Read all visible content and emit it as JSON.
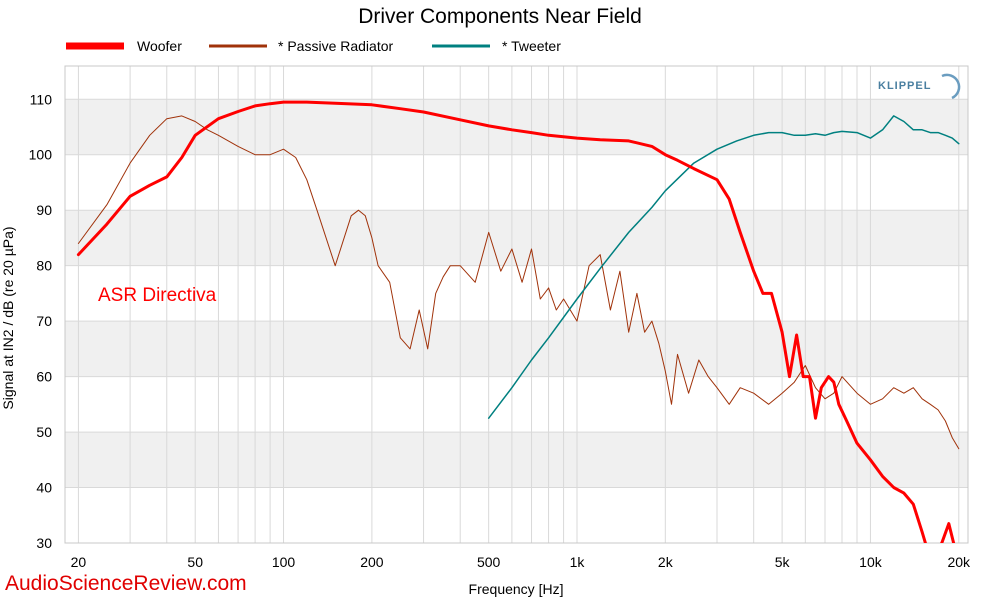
{
  "chart_data": {
    "type": "line",
    "title": "Driver Components Near Field",
    "xlabel": "Frequency [Hz]",
    "ylabel": "Signal at IN2 / dB (re 20 µPa)",
    "x_scale": "log",
    "xlim": [
      18,
      21500
    ],
    "ylim": [
      30,
      116
    ],
    "x_ticks": [
      {
        "value": 20,
        "label": "20"
      },
      {
        "value": 50,
        "label": "50"
      },
      {
        "value": 100,
        "label": "100"
      },
      {
        "value": 200,
        "label": "200"
      },
      {
        "value": 500,
        "label": "500"
      },
      {
        "value": 1000,
        "label": "1k"
      },
      {
        "value": 2000,
        "label": "2k"
      },
      {
        "value": 5000,
        "label": "5k"
      },
      {
        "value": 10000,
        "label": "10k"
      },
      {
        "value": 20000,
        "label": "20k"
      }
    ],
    "y_ticks": [
      30,
      40,
      50,
      60,
      70,
      80,
      90,
      100,
      110
    ],
    "grid": true,
    "legend_position": "top",
    "annotation": "ASR Directiva",
    "watermark": "AudioScienceReview.com",
    "logo": "KLIPPEL",
    "series": [
      {
        "name": "Woofer",
        "color": "#ff0000",
        "width": 3,
        "x": [
          20,
          25,
          30,
          35,
          40,
          45,
          50,
          60,
          70,
          80,
          90,
          100,
          120,
          150,
          200,
          250,
          300,
          400,
          500,
          600,
          700,
          800,
          1000,
          1200,
          1500,
          1800,
          2000,
          2200,
          2500,
          3000,
          3300,
          3600,
          4000,
          4300,
          4600,
          5000,
          5300,
          5600,
          5900,
          6200,
          6500,
          6800,
          7200,
          7500,
          7800,
          8300,
          9000,
          10000,
          11000,
          12000,
          13000,
          14000,
          15000,
          15800,
          16500,
          17500,
          18500,
          19200,
          20000
        ],
        "values": [
          82,
          87.5,
          92.5,
          94.5,
          96,
          99.5,
          103.5,
          106.5,
          107.8,
          108.8,
          109.2,
          109.5,
          109.5,
          109.3,
          109,
          108.3,
          107.7,
          106.3,
          105.2,
          104.5,
          104,
          103.5,
          103,
          102.7,
          102.5,
          101.5,
          100,
          99,
          97.5,
          95.5,
          92,
          86,
          79,
          75,
          75,
          68,
          60,
          67.5,
          60,
          60,
          52.5,
          58,
          60,
          59,
          55,
          52,
          48,
          45,
          42,
          40,
          39,
          37,
          32,
          28,
          28,
          30,
          33.5,
          30,
          27
        ]
      },
      {
        "name": "* Passive Radiator",
        "color": "#a0320a",
        "width": 1,
        "x": [
          20,
          25,
          30,
          35,
          40,
          45,
          50,
          55,
          60,
          70,
          80,
          90,
          100,
          110,
          120,
          130,
          150,
          170,
          180,
          190,
          200,
          210,
          230,
          250,
          270,
          290,
          310,
          330,
          350,
          370,
          400,
          450,
          500,
          550,
          600,
          650,
          700,
          750,
          800,
          850,
          900,
          1000,
          1100,
          1200,
          1300,
          1400,
          1500,
          1600,
          1700,
          1800,
          1900,
          2000,
          2100,
          2200,
          2400,
          2600,
          2800,
          3000,
          3300,
          3600,
          4000,
          4500,
          5000,
          5500,
          6000,
          6500,
          7000,
          7500,
          8000,
          9000,
          10000,
          11000,
          12000,
          13000,
          14000,
          15000,
          16000,
          17000,
          18000,
          19000,
          20000
        ],
        "values": [
          84,
          91,
          98.5,
          103.5,
          106.5,
          107,
          106,
          104.5,
          103.5,
          101.5,
          100,
          100,
          101,
          99.5,
          95.5,
          90,
          80,
          89,
          90,
          89,
          85,
          80,
          77,
          67,
          65,
          72,
          65,
          75,
          78,
          80,
          80,
          77,
          86,
          79,
          83,
          77,
          83,
          74,
          76,
          72,
          74,
          70,
          80,
          82,
          72,
          79,
          68,
          75,
          68,
          70,
          66,
          61,
          55,
          64,
          57,
          63,
          60,
          58,
          55,
          58,
          57,
          55,
          57,
          59,
          62,
          58,
          56,
          57,
          60,
          57,
          55,
          56,
          58,
          57,
          58,
          56,
          55,
          54,
          52,
          49,
          47
        ]
      },
      {
        "name": "* Tweeter",
        "color": "#008080",
        "width": 1.5,
        "x": [
          500,
          600,
          700,
          800,
          1000,
          1200,
          1500,
          1800,
          2000,
          2500,
          3000,
          3500,
          4000,
          4500,
          5000,
          5500,
          6000,
          6500,
          7000,
          7500,
          8000,
          9000,
          10000,
          11000,
          12000,
          13000,
          14000,
          15000,
          16000,
          17000,
          18000,
          19000,
          20000
        ],
        "values": [
          52.5,
          58,
          63,
          67,
          74,
          79.5,
          86,
          90.5,
          93.5,
          98.5,
          101,
          102.5,
          103.5,
          104,
          104,
          103.5,
          103.5,
          103.8,
          103.5,
          104,
          104.2,
          104,
          103,
          104.5,
          107,
          106,
          104.5,
          104.5,
          104,
          104,
          103.5,
          103,
          102
        ]
      }
    ]
  }
}
